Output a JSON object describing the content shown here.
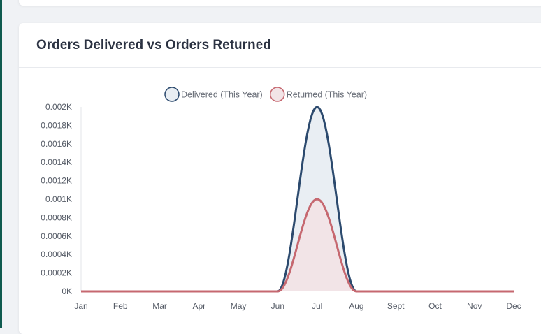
{
  "card": {
    "title": "Orders Delivered vs Orders Returned"
  },
  "chart_data": {
    "type": "area",
    "categories": [
      "Jan",
      "Feb",
      "Mar",
      "Apr",
      "May",
      "Jun",
      "Jul",
      "Aug",
      "Sept",
      "Oct",
      "Nov",
      "Dec"
    ],
    "series": [
      {
        "name": "Delivered (This Year)",
        "values": [
          0,
          0,
          0,
          0,
          0,
          0,
          0.002,
          0,
          0,
          0,
          0,
          0
        ],
        "color": "#2c4a6e",
        "fill": "#e9eef3"
      },
      {
        "name": "Returned (This Year)",
        "values": [
          0,
          0,
          0,
          0,
          0,
          0,
          0.001,
          0,
          0,
          0,
          0,
          0
        ],
        "color": "#c66870",
        "fill": "#f2e4e7"
      }
    ],
    "ylim": [
      0,
      0.002
    ],
    "yticks": [
      "0K",
      "0.0002K",
      "0.0004K",
      "0.0006K",
      "0.0008K",
      "0.001K",
      "0.0012K",
      "0.0014K",
      "0.0016K",
      "0.0018K",
      "0.002K"
    ],
    "legend": "top-center",
    "grid": false
  }
}
